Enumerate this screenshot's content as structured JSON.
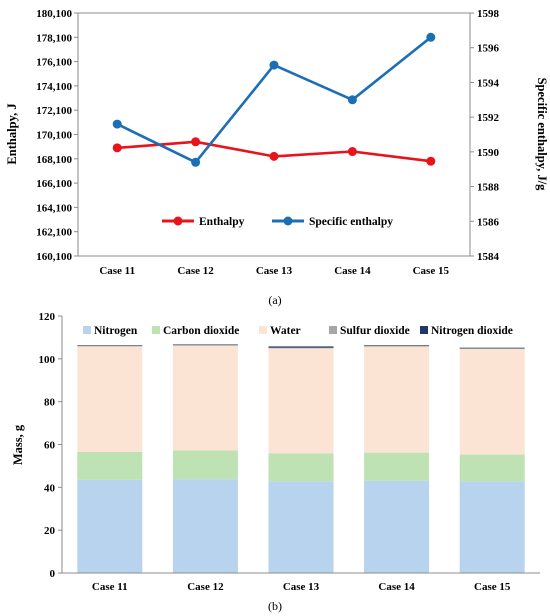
{
  "chart_data": [
    {
      "type": "line",
      "panel_label": "(a)",
      "categories": [
        "Case 11",
        "Case 12",
        "Case 13",
        "Case 14",
        "Case 15"
      ],
      "ylabel": "Enthalpy, J",
      "y2label": "Specific enthalpy, J/g",
      "ylim": [
        160100,
        180100
      ],
      "y2lim": [
        1584,
        1598
      ],
      "yticks": [
        "160,100",
        "162,100",
        "164,100",
        "166,100",
        "168,100",
        "170,100",
        "172,100",
        "174,100",
        "176,100",
        "178,100",
        "180,100"
      ],
      "y2ticks": [
        "1584",
        "1586",
        "1588",
        "1590",
        "1592",
        "1594",
        "1596",
        "1598"
      ],
      "grid": false,
      "legend_position": "bottom-center",
      "series": [
        {
          "name": "Enthalpy",
          "axis": "left",
          "color": "#e8141c",
          "values": [
            169000,
            169500,
            168300,
            168700,
            167900
          ]
        },
        {
          "name": "Specific enthalpy",
          "axis": "right",
          "color": "#1c6fb5",
          "values": [
            1591.6,
            1589.4,
            1595.0,
            1593.0,
            1596.6
          ]
        }
      ]
    },
    {
      "type": "bar",
      "stacked": true,
      "panel_label": "(b)",
      "categories": [
        "Case 11",
        "Case 12",
        "Case 13",
        "Case 14",
        "Case 15"
      ],
      "ylabel": "Mass, g",
      "ylim": [
        0,
        120
      ],
      "yticks": [
        "0",
        "20",
        "40",
        "60",
        "80",
        "100",
        "120"
      ],
      "grid": false,
      "legend_position": "top",
      "series": [
        {
          "name": "Nitrogen",
          "color": "#b7d3ee",
          "values": [
            43.5,
            43.8,
            42.8,
            43.1,
            42.8
          ]
        },
        {
          "name": "Carbon dioxide",
          "color": "#bfe2b4",
          "values": [
            13.0,
            13.4,
            13.0,
            13.1,
            12.5
          ]
        },
        {
          "name": "Water",
          "color": "#fbe4d4",
          "values": [
            49.3,
            49.0,
            49.1,
            49.5,
            49.3
          ]
        },
        {
          "name": "Sulfur dioxide",
          "color": "#a6a6a6",
          "values": [
            0.3,
            0.3,
            0.3,
            0.3,
            0.3
          ]
        },
        {
          "name": "Nitrogen dioxide",
          "color": "#1f3864",
          "values": [
            0.2,
            0.2,
            0.6,
            0.3,
            0.3
          ]
        }
      ]
    }
  ]
}
